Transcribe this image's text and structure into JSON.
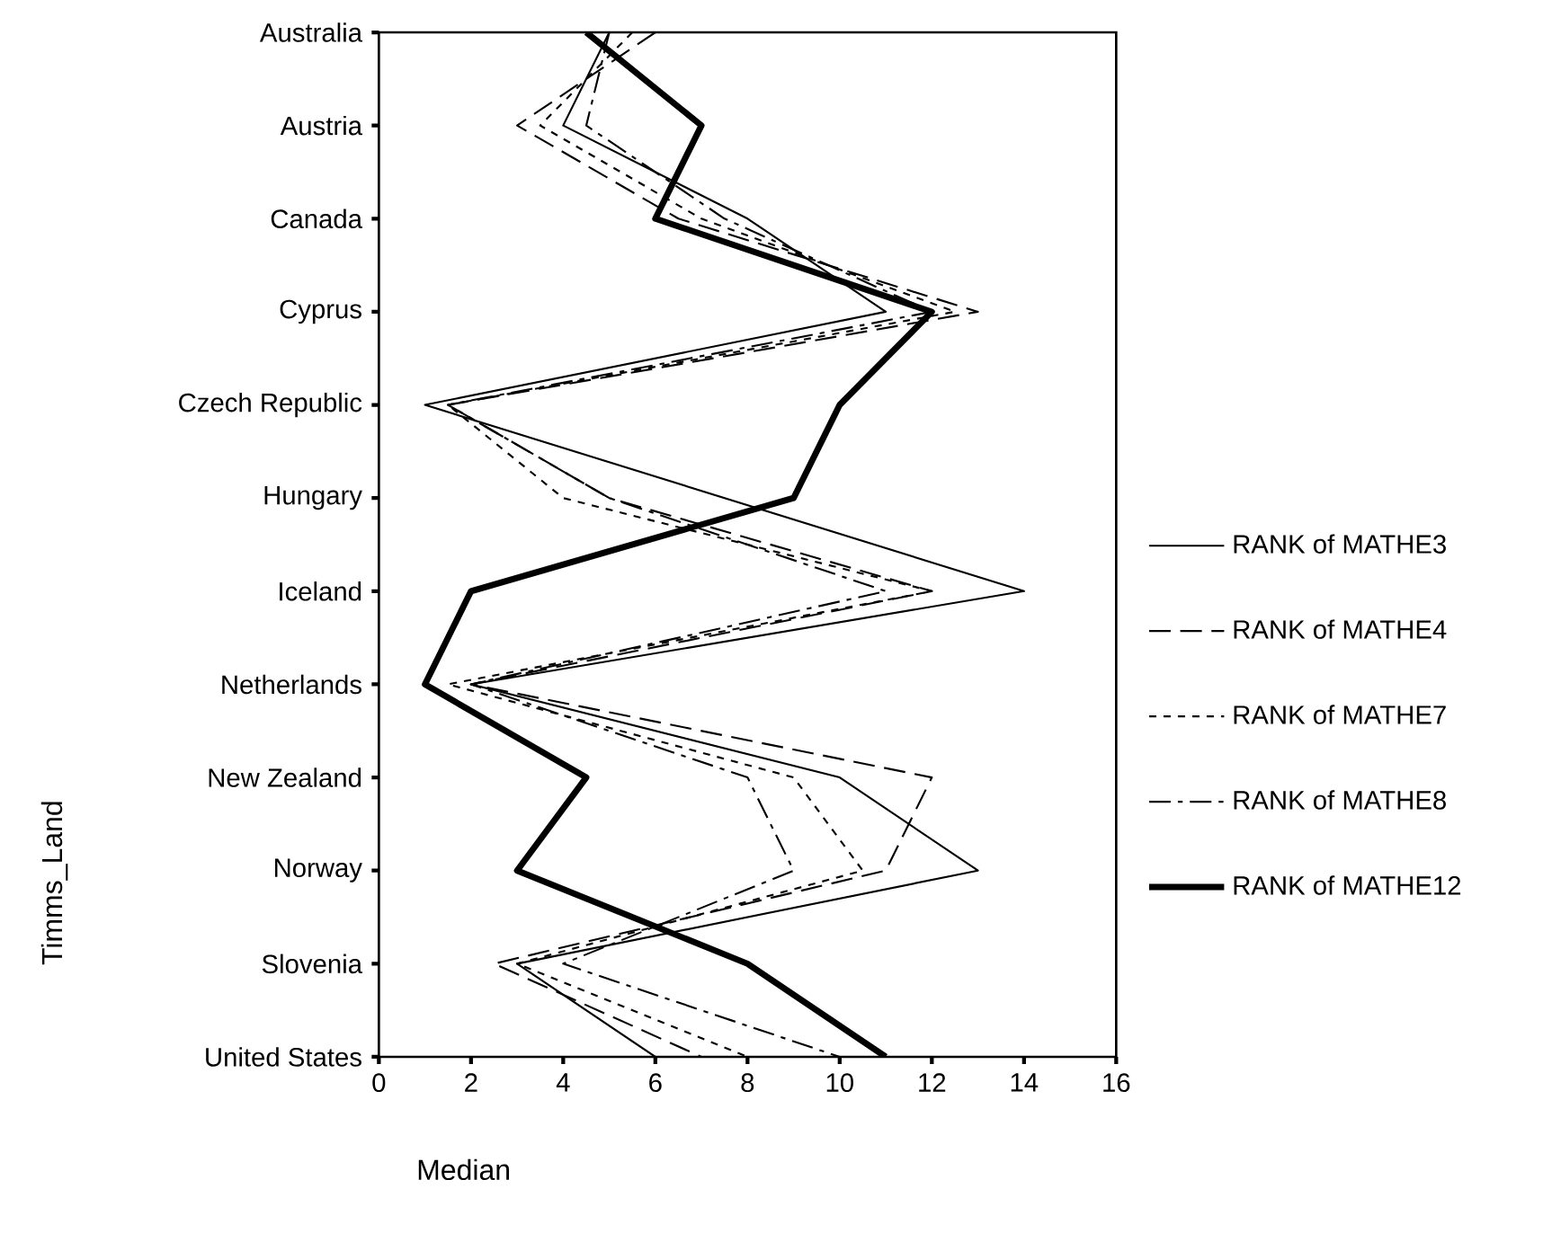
{
  "chart_data": {
    "type": "line",
    "xlabel": "Median",
    "ylabel": "Timms_Land",
    "categories": [
      "Australia",
      "Austria",
      "Canada",
      "Cyprus",
      "Czech Republic",
      "Hungary",
      "Iceland",
      "Netherlands",
      "New Zealand",
      "Norway",
      "Slovenia",
      "United States"
    ],
    "orientation": "horizontal",
    "xlim": [
      0,
      16
    ],
    "xticks": [
      0,
      2,
      4,
      6,
      8,
      10,
      12,
      14,
      16
    ],
    "grid": false,
    "legend": "right",
    "marker": "none",
    "series": [
      {
        "name": "RANK of MATHE3",
        "color": "#000000",
        "line_style": "solid",
        "values": [
          5,
          4,
          8,
          11,
          1,
          7.5,
          14,
          2,
          10,
          13,
          3,
          6
        ]
      },
      {
        "name": "RANK of MATHE4",
        "color": "#000000",
        "line_style": "dashed",
        "values": [
          6,
          3,
          6.5,
          13,
          1.5,
          5,
          12,
          2,
          12,
          11,
          2.5,
          7
        ]
      },
      {
        "name": "RANK of MATHE7",
        "color": "#000000",
        "line_style": "dotted",
        "values": [
          5.5,
          3.5,
          7,
          12.5,
          1.5,
          4,
          12,
          1.5,
          9,
          10.5,
          3,
          8
        ]
      },
      {
        "name": "RANK of MATHE8",
        "color": "#000000",
        "line_style": "dashdot",
        "values": [
          5,
          4.5,
          7.5,
          12,
          1.5,
          5,
          11,
          2,
          8,
          9,
          4,
          10
        ]
      },
      {
        "name": "RANK of MATHE12",
        "color": "#000000",
        "line_style": "solid",
        "values": [
          4.5,
          7,
          6,
          12,
          10,
          9,
          2,
          1,
          4.5,
          3,
          8,
          11
        ]
      }
    ]
  }
}
